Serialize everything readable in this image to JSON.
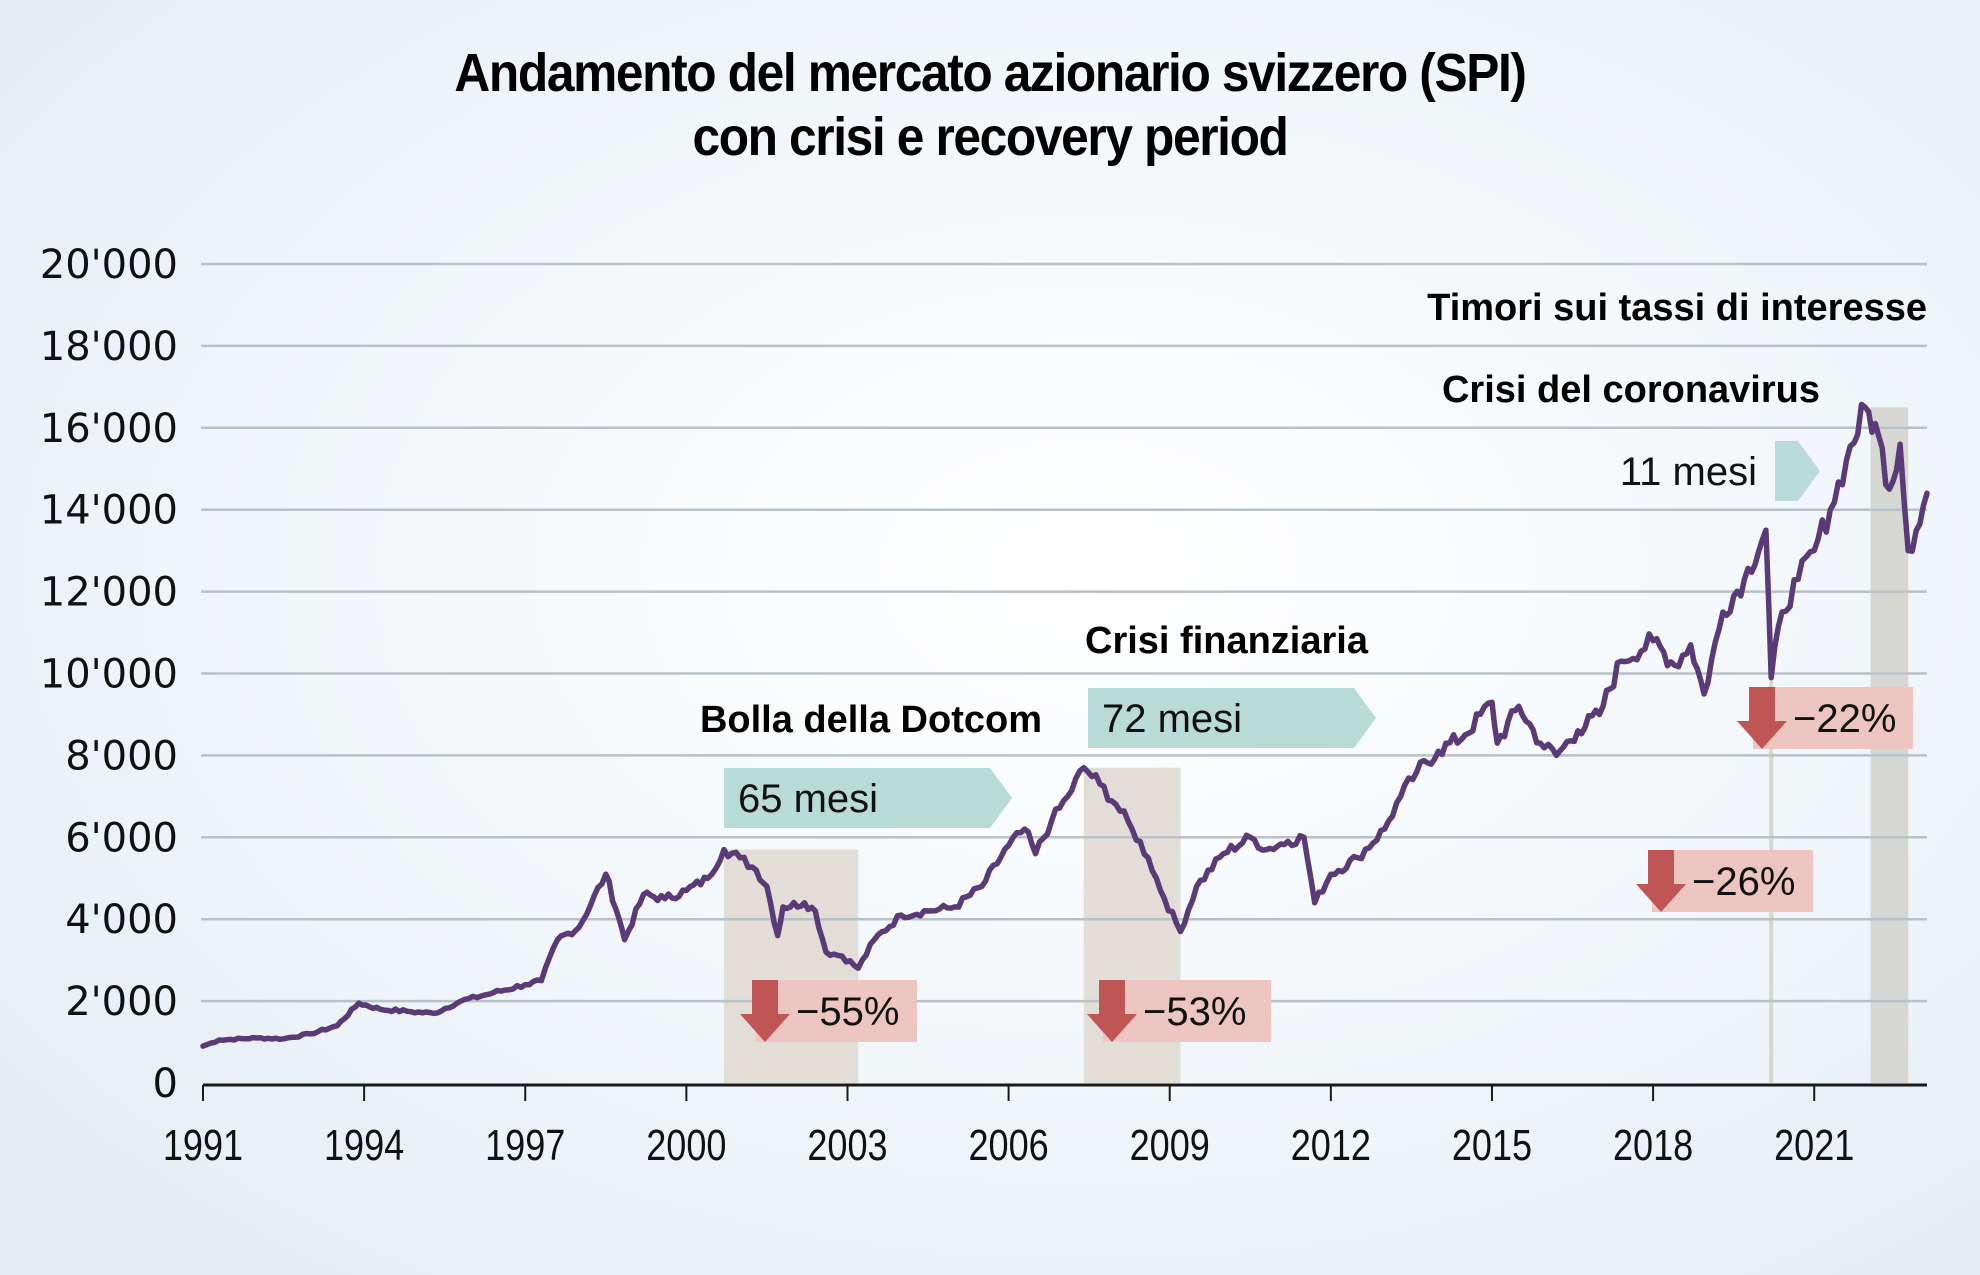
{
  "title": {
    "line1": "Andamento del mercato azionario svizzero (SPI)",
    "line2": "con crisi e recovery period"
  },
  "colors": {
    "line": "#5a3b78",
    "grid": "#b9c1c8",
    "crisis_band": "#e2ddd6",
    "crisis_band_recent": "#d6d6d2",
    "recovery_arrow": "#b8dbd6",
    "drawdown_box": "#ecc5c0",
    "drawdown_arrow": "#c05555"
  },
  "chart_data": {
    "type": "line",
    "title": "Andamento del mercato azionario svizzero (SPI) con crisi e recovery period",
    "xlabel": "",
    "ylabel": "",
    "xlim": [
      1991,
      2023.1
    ],
    "ylim": [
      0,
      20000
    ],
    "grid": true,
    "x_ticks": [
      1991,
      1994,
      1997,
      2000,
      2003,
      2006,
      2009,
      2012,
      2015,
      2018,
      2021
    ],
    "x_tick_labels": [
      "1991",
      "1994",
      "1997",
      "2000",
      "2003",
      "2006",
      "2009",
      "2012",
      "2015",
      "2018",
      "2021"
    ],
    "y_ticks": [
      0,
      2000,
      4000,
      6000,
      8000,
      10000,
      12000,
      14000,
      16000,
      18000,
      20000
    ],
    "y_tick_labels": [
      "0",
      "2'000",
      "4'000",
      "6'000",
      "8'000",
      "10'000",
      "12'000",
      "14'000",
      "16'000",
      "18'000",
      "20'000"
    ],
    "series": [
      {
        "name": "SPI",
        "x": [
          1991.0,
          1991.3,
          1992.0,
          1992.5,
          1993.0,
          1993.5,
          1993.9,
          1994.3,
          1994.8,
          1995.3,
          1995.8,
          1996.4,
          1997.0,
          1997.3,
          1997.6,
          1998.0,
          1998.5,
          1998.75,
          1998.85,
          1999.2,
          1999.6,
          2000.0,
          2000.4,
          2000.7,
          2001.0,
          2001.3,
          2001.5,
          2001.7,
          2001.8,
          2002.2,
          2002.4,
          2002.6,
          2002.9,
          2003.2,
          2003.5,
          2004.0,
          2004.5,
          2005.0,
          2005.5,
          2006.0,
          2006.3,
          2006.5,
          2006.8,
          2007.1,
          2007.4,
          2007.7,
          2008.0,
          2008.3,
          2008.6,
          2008.9,
          2009.2,
          2009.5,
          2010.0,
          2010.5,
          2010.8,
          2011.2,
          2011.5,
          2011.7,
          2012.0,
          2012.5,
          2013.0,
          2013.3,
          2013.6,
          2014.0,
          2014.5,
          2015.0,
          2015.1,
          2015.5,
          2015.9,
          2016.2,
          2016.6,
          2017.0,
          2017.4,
          2018.0,
          2018.4,
          2018.7,
          2018.95,
          2019.3,
          2019.7,
          2020.1,
          2020.2,
          2020.4,
          2020.7,
          2021.0,
          2021.3,
          2021.6,
          2021.95,
          2022.2,
          2022.4,
          2022.6,
          2022.75,
          2022.9,
          2023.1
        ],
        "y": [
          900,
          1050,
          1100,
          1080,
          1200,
          1400,
          1950,
          1800,
          1750,
          1700,
          2000,
          2200,
          2400,
          2500,
          3500,
          3800,
          5100,
          4000,
          3500,
          4600,
          4500,
          4700,
          5000,
          5700,
          5500,
          5200,
          4800,
          3600,
          4300,
          4400,
          4200,
          3200,
          3100,
          2800,
          3500,
          4100,
          4200,
          4300,
          4800,
          5800,
          6200,
          5600,
          6400,
          7000,
          7700,
          7300,
          6800,
          6200,
          5500,
          4500,
          3700,
          4800,
          5600,
          6000,
          5700,
          5900,
          6000,
          4400,
          5100,
          5500,
          6200,
          7000,
          7600,
          8100,
          8500,
          9300,
          8300,
          9200,
          8300,
          8000,
          8600,
          9000,
          10300,
          10800,
          10200,
          10700,
          9500,
          11500,
          12300,
          13500,
          9900,
          11500,
          12300,
          13000,
          14000,
          15200,
          16500,
          15800,
          14500,
          15600,
          13000,
          13500,
          14400
        ]
      }
    ],
    "crises": [
      {
        "label": "Bolla della Dotcom",
        "start": 2000.7,
        "end": 2003.2,
        "drawdown": "−55%",
        "recovery": "65 mesi"
      },
      {
        "label": "Crisi finanziaria",
        "start": 2007.4,
        "end": 2009.2,
        "drawdown": "−53%",
        "recovery": "72 mesi"
      },
      {
        "label": "Crisi del coronavirus",
        "start": 2020.1,
        "end": 2020.2,
        "drawdown": "−26%",
        "recovery": "11 mesi"
      },
      {
        "label": "Timori sui tassi di interesse",
        "start": 2022.05,
        "end": 2022.75,
        "drawdown": "−22%",
        "recovery": ""
      }
    ]
  }
}
